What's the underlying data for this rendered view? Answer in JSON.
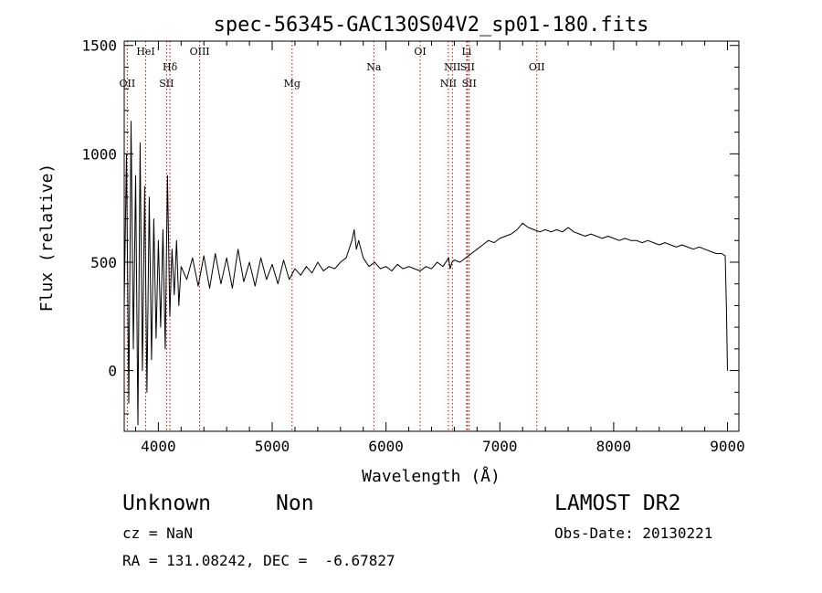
{
  "chart_data": {
    "type": "line",
    "title": "spec-56345-GAC130S04V2_sp01-180.fits",
    "xlabel": "Wavelength (Å)",
    "ylabel": "Flux (relative)",
    "xlim": [
      3700,
      9100
    ],
    "ylim": [
      -280,
      1520
    ],
    "xticks": [
      4000,
      5000,
      6000,
      7000,
      8000,
      9000
    ],
    "yticks": [
      0,
      500,
      1000,
      1500
    ],
    "grid": false,
    "series": [
      {
        "x": [
          3700,
          3720,
          3740,
          3760,
          3780,
          3800,
          3820,
          3840,
          3860,
          3880,
          3900,
          3920,
          3940,
          3960,
          3980,
          4000,
          4020,
          4040,
          4060,
          4080,
          4100,
          4120,
          4140,
          4160,
          4180,
          4200,
          4250,
          4300,
          4350,
          4400,
          4450,
          4500,
          4550,
          4600,
          4650,
          4700,
          4750,
          4800,
          4850,
          4900,
          4950,
          5000,
          5050,
          5100,
          5150,
          5200,
          5250,
          5300,
          5350,
          5400,
          5450,
          5500,
          5550,
          5600,
          5650,
          5700,
          5720,
          5740,
          5760,
          5800,
          5850,
          5900,
          5950,
          6000,
          6050,
          6100,
          6150,
          6200,
          6250,
          6300,
          6350,
          6400,
          6450,
          6500,
          6550,
          6563,
          6580,
          6600,
          6650,
          6700,
          6750,
          6800,
          6850,
          6900,
          6950,
          7000,
          7050,
          7100,
          7150,
          7200,
          7250,
          7300,
          7350,
          7400,
          7450,
          7500,
          7550,
          7600,
          7650,
          7700,
          7750,
          7800,
          7850,
          7900,
          7950,
          8000,
          8050,
          8100,
          8150,
          8200,
          8250,
          8300,
          8350,
          8400,
          8450,
          8500,
          8550,
          8600,
          8650,
          8700,
          8750,
          8800,
          8850,
          8900,
          8950,
          8980,
          8990,
          9000
        ],
        "y": [
          300,
          1000,
          -150,
          1150,
          100,
          900,
          -250,
          1050,
          0,
          850,
          -100,
          800,
          50,
          700,
          150,
          600,
          200,
          650,
          100,
          900,
          250,
          560,
          350,
          600,
          300,
          480,
          420,
          520,
          390,
          530,
          380,
          540,
          400,
          520,
          380,
          560,
          410,
          500,
          390,
          520,
          420,
          490,
          400,
          510,
          420,
          470,
          440,
          480,
          450,
          500,
          460,
          480,
          470,
          500,
          520,
          600,
          650,
          560,
          600,
          520,
          480,
          500,
          470,
          480,
          460,
          490,
          470,
          480,
          470,
          460,
          480,
          470,
          500,
          480,
          520,
          470,
          500,
          510,
          500,
          520,
          540,
          560,
          580,
          600,
          590,
          610,
          620,
          630,
          650,
          680,
          660,
          650,
          640,
          650,
          640,
          650,
          640,
          660,
          640,
          630,
          620,
          630,
          620,
          610,
          620,
          610,
          600,
          610,
          600,
          600,
          590,
          600,
          590,
          580,
          590,
          580,
          570,
          580,
          570,
          560,
          570,
          560,
          550,
          540,
          540,
          530,
          300,
          0
        ]
      }
    ],
    "lines": [
      {
        "label": "OII",
        "x": 3727,
        "row": 2
      },
      {
        "label": "HeI",
        "x": 3889,
        "row": 0
      },
      {
        "label": "Hδ",
        "x": 4102,
        "row": 1
      },
      {
        "label": "SII",
        "x": 4072,
        "row": 2
      },
      {
        "label": "OIII",
        "x": 4363,
        "row": 0
      },
      {
        "label": "Mg",
        "x": 5175,
        "row": 2
      },
      {
        "label": "Na",
        "x": 5893,
        "row": 1
      },
      {
        "label": "OI",
        "x": 6300,
        "row": 0
      },
      {
        "label": "NII",
        "x": 6548,
        "row": 2
      },
      {
        "label": "NII",
        "x": 6583,
        "row": 1
      },
      {
        "label": "Li",
        "x": 6708,
        "row": 0
      },
      {
        "label": "SII",
        "x": 6716,
        "row": 1
      },
      {
        "label": "SII",
        "x": 6731,
        "row": 2
      },
      {
        "label": "OII",
        "x": 7325,
        "row": 1
      }
    ]
  },
  "info": {
    "class_text": "Unknown",
    "subclass_text": "Non",
    "survey_text": "LAMOST DR2",
    "cz_text": "cz = NaN",
    "obsdate_text": "Obs-Date: 20130221",
    "coords_text": "RA = 131.08242, DEC =  -6.67827"
  }
}
